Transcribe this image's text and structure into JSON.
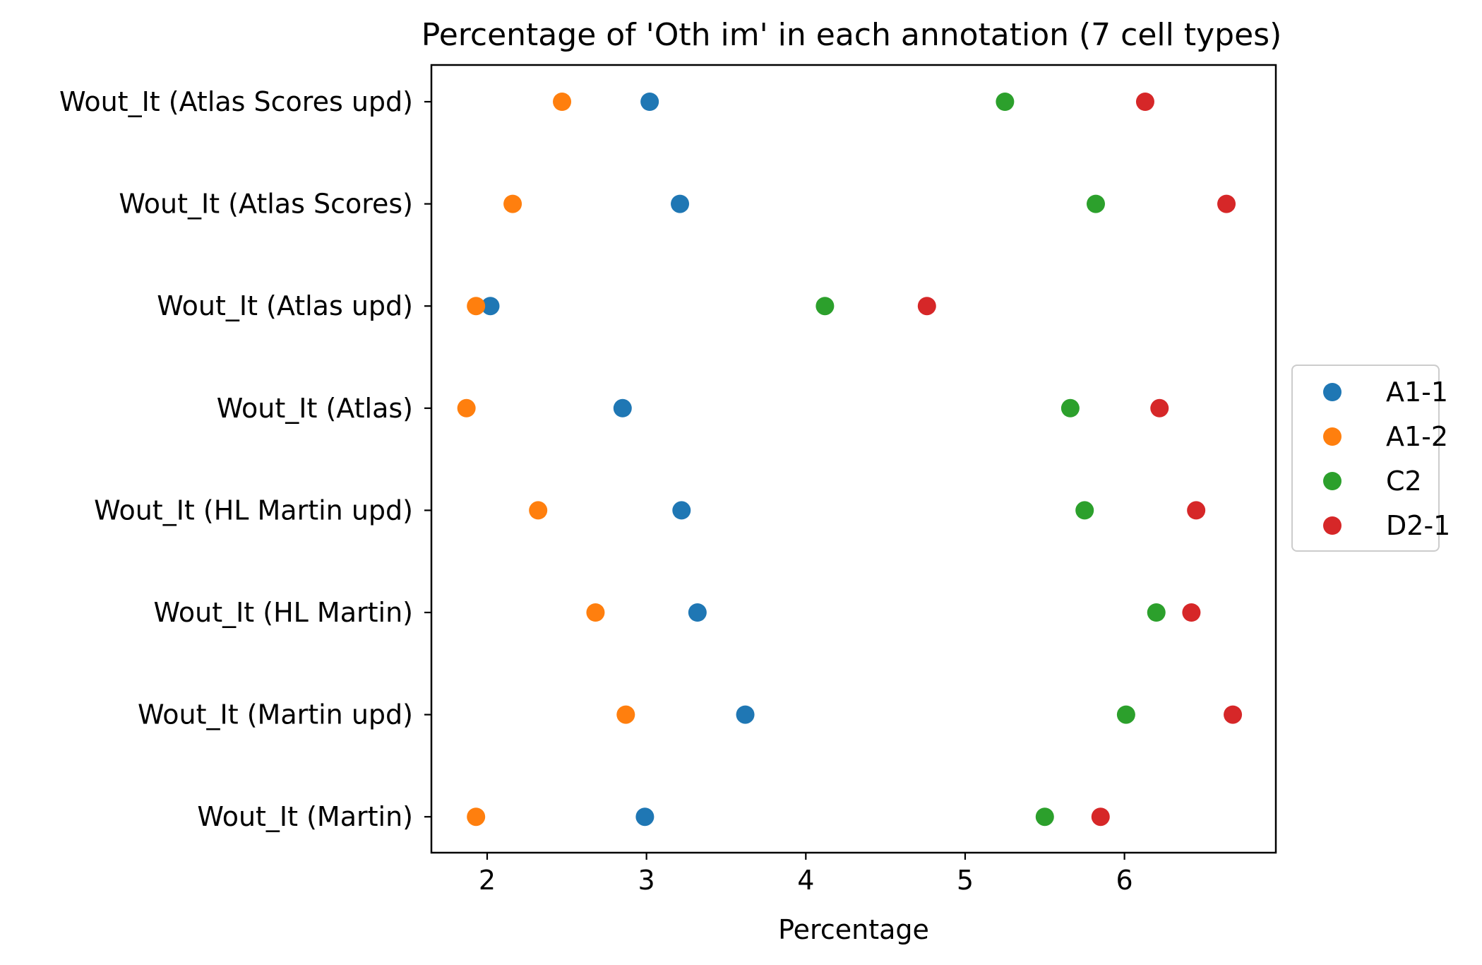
{
  "chart_data": {
    "type": "scatter",
    "title": "Percentage of 'Oth im' in each annotation (7 cell types)",
    "xlabel": "Percentage",
    "ylabel": "",
    "xlim": [
      1.65,
      6.95
    ],
    "xticks": [
      2,
      3,
      4,
      5,
      6
    ],
    "categories": [
      "Wout_It (Atlas Scores upd)",
      "Wout_It (Atlas Scores)",
      "Wout_It (Atlas upd)",
      "Wout_It (Atlas)",
      "Wout_It (HL Martin upd)",
      "Wout_It (HL Martin)",
      "Wout_It (Martin upd)",
      "Wout_It (Martin)"
    ],
    "series": [
      {
        "name": "A1-1",
        "color": "#1f77b4",
        "values": [
          3.02,
          3.21,
          2.02,
          2.85,
          3.22,
          3.32,
          3.62,
          2.99
        ]
      },
      {
        "name": "A1-2",
        "color": "#ff7f0e",
        "values": [
          2.47,
          2.16,
          1.93,
          1.87,
          2.32,
          2.68,
          2.87,
          1.93
        ]
      },
      {
        "name": "C2",
        "color": "#2ca02c",
        "values": [
          5.25,
          5.82,
          4.12,
          5.66,
          5.75,
          6.2,
          6.01,
          5.5
        ]
      },
      {
        "name": "D2-1",
        "color": "#d62728",
        "values": [
          6.13,
          6.64,
          4.76,
          6.22,
          6.45,
          6.42,
          6.68,
          5.85
        ]
      }
    ],
    "legend_position": "center-right",
    "grid": false
  }
}
